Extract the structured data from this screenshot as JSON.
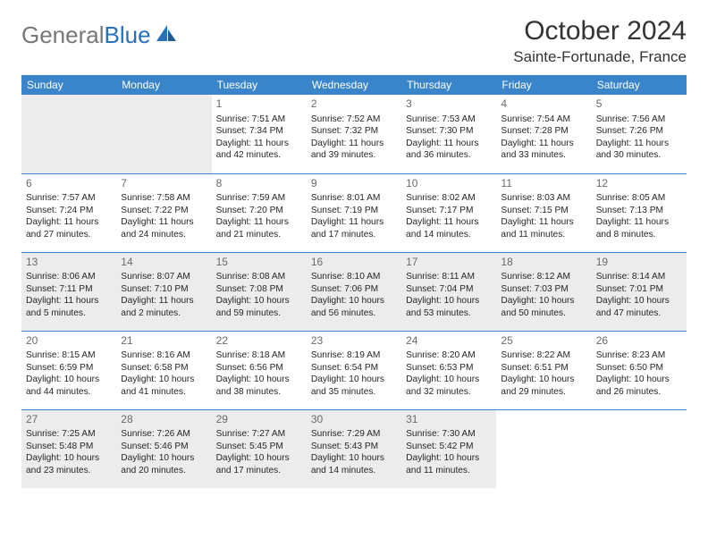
{
  "brand": {
    "part1": "General",
    "part2": "Blue"
  },
  "title": "October 2024",
  "location": "Sainte-Fortunade, France",
  "columns": [
    "Sunday",
    "Monday",
    "Tuesday",
    "Wednesday",
    "Thursday",
    "Friday",
    "Saturday"
  ],
  "colors": {
    "header_bg": "#3a85c9",
    "header_text": "#ffffff",
    "shade_bg": "#ececec",
    "rule": "#3a85c9",
    "brand_gray": "#777777",
    "brand_blue": "#2970b8"
  },
  "weeks": [
    [
      {
        "shade": true
      },
      {
        "shade": true
      },
      {
        "day": "1",
        "sunrise": "7:51 AM",
        "sunset": "7:34 PM",
        "dl_h": "11",
        "dl_m": "42"
      },
      {
        "day": "2",
        "sunrise": "7:52 AM",
        "sunset": "7:32 PM",
        "dl_h": "11",
        "dl_m": "39"
      },
      {
        "day": "3",
        "sunrise": "7:53 AM",
        "sunset": "7:30 PM",
        "dl_h": "11",
        "dl_m": "36"
      },
      {
        "day": "4",
        "sunrise": "7:54 AM",
        "sunset": "7:28 PM",
        "dl_h": "11",
        "dl_m": "33"
      },
      {
        "day": "5",
        "sunrise": "7:56 AM",
        "sunset": "7:26 PM",
        "dl_h": "11",
        "dl_m": "30"
      }
    ],
    [
      {
        "day": "6",
        "sunrise": "7:57 AM",
        "sunset": "7:24 PM",
        "dl_h": "11",
        "dl_m": "27"
      },
      {
        "day": "7",
        "sunrise": "7:58 AM",
        "sunset": "7:22 PM",
        "dl_h": "11",
        "dl_m": "24"
      },
      {
        "day": "8",
        "sunrise": "7:59 AM",
        "sunset": "7:20 PM",
        "dl_h": "11",
        "dl_m": "21"
      },
      {
        "day": "9",
        "sunrise": "8:01 AM",
        "sunset": "7:19 PM",
        "dl_h": "11",
        "dl_m": "17"
      },
      {
        "day": "10",
        "sunrise": "8:02 AM",
        "sunset": "7:17 PM",
        "dl_h": "11",
        "dl_m": "14"
      },
      {
        "day": "11",
        "sunrise": "8:03 AM",
        "sunset": "7:15 PM",
        "dl_h": "11",
        "dl_m": "11"
      },
      {
        "day": "12",
        "sunrise": "8:05 AM",
        "sunset": "7:13 PM",
        "dl_h": "11",
        "dl_m": "8"
      }
    ],
    [
      {
        "day": "13",
        "sunrise": "8:06 AM",
        "sunset": "7:11 PM",
        "dl_h": "11",
        "dl_m": "5",
        "shade": true
      },
      {
        "day": "14",
        "sunrise": "8:07 AM",
        "sunset": "7:10 PM",
        "dl_h": "11",
        "dl_m": "2",
        "shade": true
      },
      {
        "day": "15",
        "sunrise": "8:08 AM",
        "sunset": "7:08 PM",
        "dl_h": "10",
        "dl_m": "59",
        "shade": true
      },
      {
        "day": "16",
        "sunrise": "8:10 AM",
        "sunset": "7:06 PM",
        "dl_h": "10",
        "dl_m": "56",
        "shade": true
      },
      {
        "day": "17",
        "sunrise": "8:11 AM",
        "sunset": "7:04 PM",
        "dl_h": "10",
        "dl_m": "53",
        "shade": true
      },
      {
        "day": "18",
        "sunrise": "8:12 AM",
        "sunset": "7:03 PM",
        "dl_h": "10",
        "dl_m": "50",
        "shade": true
      },
      {
        "day": "19",
        "sunrise": "8:14 AM",
        "sunset": "7:01 PM",
        "dl_h": "10",
        "dl_m": "47",
        "shade": true
      }
    ],
    [
      {
        "day": "20",
        "sunrise": "8:15 AM",
        "sunset": "6:59 PM",
        "dl_h": "10",
        "dl_m": "44"
      },
      {
        "day": "21",
        "sunrise": "8:16 AM",
        "sunset": "6:58 PM",
        "dl_h": "10",
        "dl_m": "41"
      },
      {
        "day": "22",
        "sunrise": "8:18 AM",
        "sunset": "6:56 PM",
        "dl_h": "10",
        "dl_m": "38"
      },
      {
        "day": "23",
        "sunrise": "8:19 AM",
        "sunset": "6:54 PM",
        "dl_h": "10",
        "dl_m": "35"
      },
      {
        "day": "24",
        "sunrise": "8:20 AM",
        "sunset": "6:53 PM",
        "dl_h": "10",
        "dl_m": "32"
      },
      {
        "day": "25",
        "sunrise": "8:22 AM",
        "sunset": "6:51 PM",
        "dl_h": "10",
        "dl_m": "29"
      },
      {
        "day": "26",
        "sunrise": "8:23 AM",
        "sunset": "6:50 PM",
        "dl_h": "10",
        "dl_m": "26"
      }
    ],
    [
      {
        "day": "27",
        "sunrise": "7:25 AM",
        "sunset": "5:48 PM",
        "dl_h": "10",
        "dl_m": "23",
        "shade": true
      },
      {
        "day": "28",
        "sunrise": "7:26 AM",
        "sunset": "5:46 PM",
        "dl_h": "10",
        "dl_m": "20",
        "shade": true
      },
      {
        "day": "29",
        "sunrise": "7:27 AM",
        "sunset": "5:45 PM",
        "dl_h": "10",
        "dl_m": "17",
        "shade": true
      },
      {
        "day": "30",
        "sunrise": "7:29 AM",
        "sunset": "5:43 PM",
        "dl_h": "10",
        "dl_m": "14",
        "shade": true
      },
      {
        "day": "31",
        "sunrise": "7:30 AM",
        "sunset": "5:42 PM",
        "dl_h": "10",
        "dl_m": "11",
        "shade": true
      },
      {},
      {}
    ]
  ]
}
